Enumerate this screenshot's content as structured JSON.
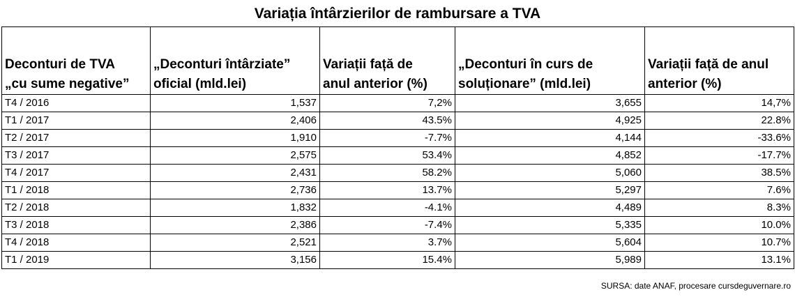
{
  "title": "Variația întârzierilor de rambursare a TVA",
  "columns": [
    [
      "Deconturi de TVA",
      "„cu sume negative”"
    ],
    [
      "„Deconturi întârziate”",
      "oficial (mld.lei)"
    ],
    [
      "Variații față de",
      "anul anterior (%)"
    ],
    [
      "„Deconturi în curs de",
      "soluționare” (mld.lei)"
    ],
    [
      "Variații față de anul",
      "anterior (%)"
    ]
  ],
  "rows": [
    [
      "T4 / 2016",
      "1,537",
      "7,2%",
      "3,655",
      "14,7%"
    ],
    [
      "T1 / 2017",
      "2,406",
      "43.5%",
      "4,925",
      "22.8%"
    ],
    [
      "T2 / 2017",
      "1,910",
      "-7.7%",
      "4,144",
      "-33.6%"
    ],
    [
      "T3 / 2017",
      "2,575",
      "53.4%",
      "4,852",
      "-17.7%"
    ],
    [
      "T4 / 2017",
      "2,431",
      "58.2%",
      "5,060",
      "38.5%"
    ],
    [
      "T1 / 2018",
      "2,736",
      "13.7%",
      "5,297",
      "7.6%"
    ],
    [
      "T2 / 2018",
      "1,832",
      "-4.1%",
      "4,489",
      "8.3%"
    ],
    [
      "T3 / 2018",
      "2,386",
      "-7.4%",
      "5,335",
      "10.0%"
    ],
    [
      "T4 / 2018",
      "2,521",
      "3.7%",
      "5,604",
      "10.7%"
    ],
    [
      "T1 / 2019",
      "3,156",
      "15.4%",
      "5,989",
      "13.1%"
    ]
  ],
  "source": "SURSA: date ANAF, procesare cursdeguvernare.ro"
}
